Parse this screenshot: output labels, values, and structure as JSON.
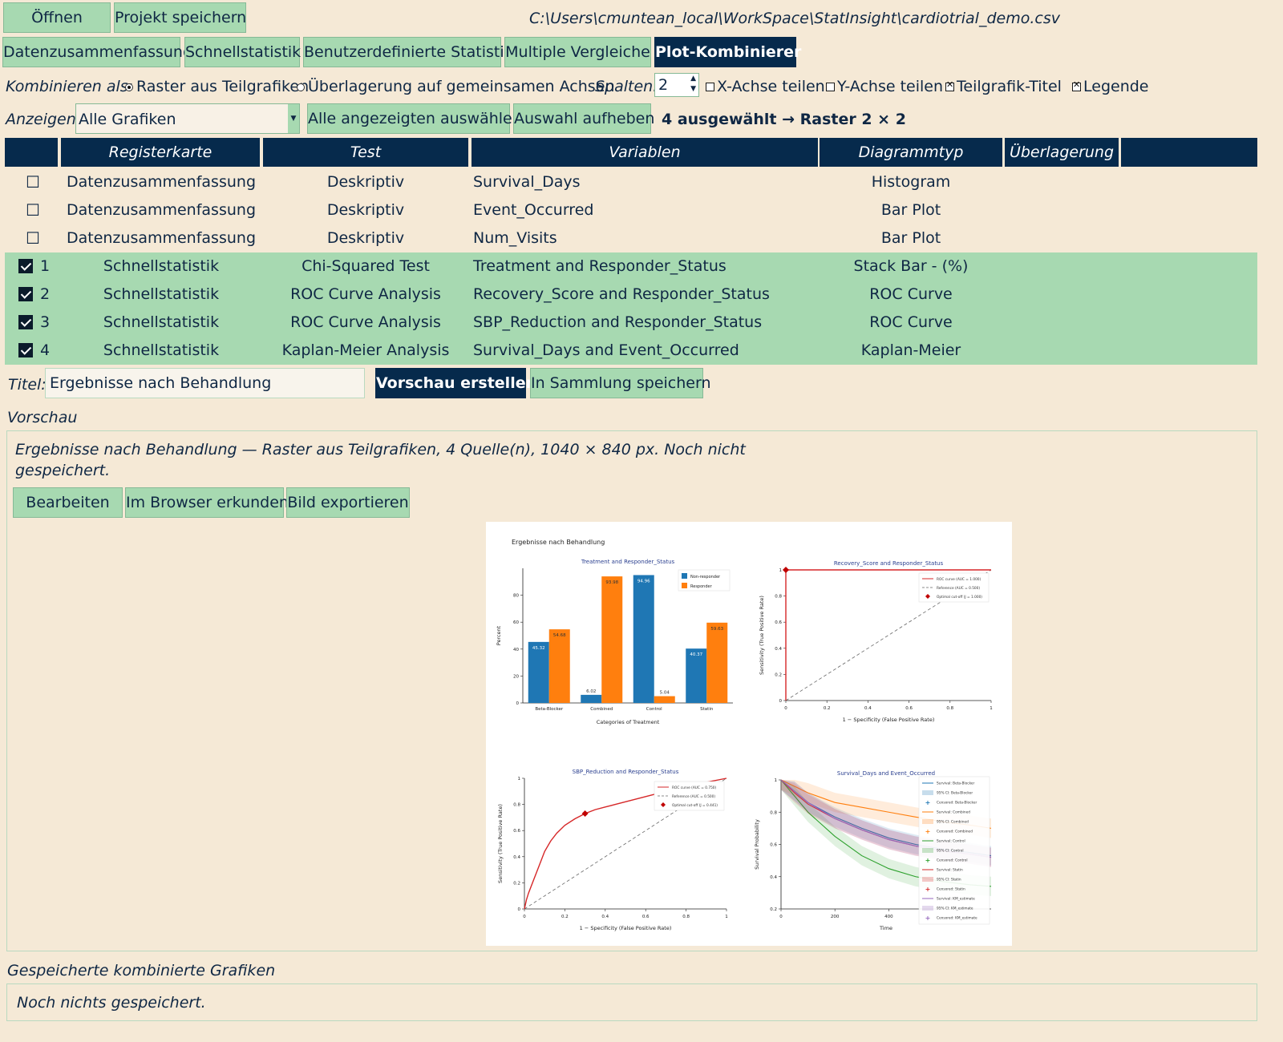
{
  "toolbar": {
    "open_label": "Öffnen",
    "save_project_label": "Projekt speichern",
    "file_path": "C:\\Users\\cmuntean_local\\WorkSpace\\StatInsight\\cardiotrial_demo.csv"
  },
  "tabs": [
    {
      "label": "Datenzusammenfassung",
      "active": false
    },
    {
      "label": "Schnellstatistik",
      "active": false
    },
    {
      "label": "Benutzerdefinierte Statistik",
      "active": false
    },
    {
      "label": "Multiple Vergleiche",
      "active": false
    },
    {
      "label": "Plot-Kombinierer",
      "active": true
    }
  ],
  "options": {
    "combine_label": "Kombinieren als:",
    "radio_grid": "Raster aus Teilgrafiken",
    "radio_overlay": "Überlagerung auf gemeinsamen Achsen",
    "columns_label": "Spalten:",
    "columns_value": "2",
    "share_x": "X-Achse teilen",
    "share_y": "Y-Achse teilen",
    "subplot_titles": "Teilgrafik-Titel",
    "legend": "Legende",
    "share_x_checked": false,
    "share_y_checked": false,
    "subplot_titles_checked": true,
    "legend_checked": true
  },
  "filter": {
    "show_label": "Anzeigen:",
    "show_value": "Alle Grafiken",
    "select_all_label": "Alle angezeigten auswählen",
    "clear_label": "Auswahl aufheben",
    "summary": "4 ausgewählt → Raster 2 × 2"
  },
  "table": {
    "headers": [
      "",
      "Registerkarte",
      "Test",
      "Variablen",
      "Diagrammtyp",
      "Überlagerung"
    ],
    "rows": [
      {
        "checked": false,
        "num": "",
        "tab": "Datenzusammenfassung",
        "test": "Deskriptiv",
        "vars": "Survival_Days",
        "type": "Histogram"
      },
      {
        "checked": false,
        "num": "",
        "tab": "Datenzusammenfassung",
        "test": "Deskriptiv",
        "vars": "Event_Occurred",
        "type": "Bar Plot"
      },
      {
        "checked": false,
        "num": "",
        "tab": "Datenzusammenfassung",
        "test": "Deskriptiv",
        "vars": "Num_Visits",
        "type": "Bar Plot"
      },
      {
        "checked": true,
        "num": "1",
        "tab": "Schnellstatistik",
        "test": "Chi-Squared Test",
        "vars": "Treatment and Responder_Status",
        "type": "Stack Bar - (%)"
      },
      {
        "checked": true,
        "num": "2",
        "tab": "Schnellstatistik",
        "test": "ROC Curve Analysis",
        "vars": "Recovery_Score and Responder_Status",
        "type": "ROC Curve"
      },
      {
        "checked": true,
        "num": "3",
        "tab": "Schnellstatistik",
        "test": "ROC Curve Analysis",
        "vars": "SBP_Reduction and Responder_Status",
        "type": "ROC Curve"
      },
      {
        "checked": true,
        "num": "4",
        "tab": "Schnellstatistik",
        "test": "Kaplan-Meier Analysis",
        "vars": "Survival_Days and Event_Occurred",
        "type": "Kaplan-Meier"
      }
    ]
  },
  "title_row": {
    "label": "Titel:",
    "value": "Ergebnisse nach Behandlung",
    "preview_btn": "Vorschau erstellen",
    "save_btn": "In Sammlung speichern"
  },
  "preview": {
    "section_label": "Vorschau",
    "info_line1": "Ergebnisse nach Behandlung — Raster aus Teilgrafiken, 4 Quelle(n), 1040 × 840 px. Noch nicht",
    "info_line2": "gespeichert.",
    "edit_btn": "Bearbeiten",
    "browser_btn": "Im Browser erkunden",
    "export_btn": "Bild exportieren"
  },
  "figure": {
    "title": "Ergebnisse nach Behandlung"
  },
  "saved": {
    "section_label": "Gespeicherte kombinierte Grafiken",
    "empty_text": "Noch nichts gespeichert."
  },
  "colors": {
    "accent_green": "#a7d9b1",
    "dark_navy": "#062a4c",
    "background": "#f5e9d6",
    "series_blue": "#1f77b4",
    "series_orange": "#ff7f0e",
    "series_green": "#2ca02c",
    "series_red": "#d62728",
    "series_purple": "#9467bd"
  },
  "chart_data": [
    {
      "type": "bar",
      "title": "Treatment and Responder_Status",
      "xlabel": "Categories of Treatment",
      "ylabel": "Percent",
      "categories": [
        "Beta-Blocker",
        "Combined",
        "Control",
        "Statin"
      ],
      "series": [
        {
          "name": "Non-responder",
          "values": [
            45.32,
            6.02,
            94.96,
            40.37
          ],
          "labels": [
            "45.32",
            "6.02",
            "94.96",
            "40.37"
          ]
        },
        {
          "name": "Responder",
          "values": [
            54.68,
            93.98,
            5.04,
            59.63
          ],
          "labels": [
            "54.68",
            "93.98",
            "5.04",
            "59.63"
          ]
        }
      ],
      "ylim": [
        0,
        100
      ],
      "yticks": [
        "0",
        "20",
        "40",
        "60",
        "80"
      ]
    },
    {
      "type": "line",
      "title": "Recovery_Score and Responder_Status",
      "xlabel": "1 − Specificity (False Positive Rate)",
      "ylabel": "Sensitivity (True Positive Rate)",
      "xlim": [
        0,
        1
      ],
      "ylim": [
        0,
        1
      ],
      "xticks": [
        "0",
        "0.2",
        "0.4",
        "0.6",
        "0.8",
        "1"
      ],
      "yticks": [
        "0",
        "0.2",
        "0.4",
        "0.6",
        "0.8",
        "1"
      ],
      "legend": [
        "ROC curve (AUC = 1.000)",
        "Reference (AUC = 0.500)",
        "Optimal cut-off (J = 1.000)"
      ],
      "series": [
        {
          "name": "ROC curve",
          "x": [
            0,
            0,
            1
          ],
          "y": [
            0,
            1,
            1
          ]
        },
        {
          "name": "Reference",
          "x": [
            0,
            1
          ],
          "y": [
            0,
            1
          ]
        }
      ],
      "optimal_point": {
        "x": 0,
        "y": 1
      }
    },
    {
      "type": "line",
      "title": "SBP_Reduction and Responder_Status",
      "xlabel": "1 − Specificity (False Positive Rate)",
      "ylabel": "Sensitivity (True Positive Rate)",
      "xlim": [
        0,
        1
      ],
      "ylim": [
        0,
        1
      ],
      "xticks": [
        "0",
        "0.2",
        "0.4",
        "0.6",
        "0.8",
        "1"
      ],
      "yticks": [
        "0",
        "0.2",
        "0.4",
        "0.6",
        "0.8",
        "1"
      ],
      "legend": [
        "ROC curve (AUC = 0.750)",
        "Reference (AUC = 0.500)",
        "Optimal cut-off (J = 0.441)"
      ],
      "series": [
        {
          "name": "ROC curve",
          "x": [
            0,
            0.01,
            0.02,
            0.04,
            0.06,
            0.08,
            0.1,
            0.13,
            0.16,
            0.2,
            0.25,
            0.3,
            0.35,
            0.4,
            0.45,
            0.5,
            0.55,
            0.6,
            0.7,
            0.8,
            0.9,
            1
          ],
          "y": [
            0,
            0.07,
            0.12,
            0.2,
            0.28,
            0.36,
            0.44,
            0.52,
            0.58,
            0.64,
            0.69,
            0.73,
            0.76,
            0.78,
            0.8,
            0.82,
            0.84,
            0.86,
            0.9,
            0.93,
            0.97,
            1
          ]
        },
        {
          "name": "Reference",
          "x": [
            0,
            1
          ],
          "y": [
            0,
            1
          ]
        }
      ],
      "optimal_point": {
        "x": 0.3,
        "y": 0.73
      }
    },
    {
      "type": "line",
      "title": "Survival_Days and Event_Occurred",
      "xlabel": "Time",
      "ylabel": "Survival Probability",
      "xlim": [
        0,
        780
      ],
      "ylim": [
        0.2,
        1
      ],
      "xticks": [
        "0",
        "200",
        "400"
      ],
      "yticks": [
        "0.2",
        "0.4",
        "0.6",
        "0.8",
        "1"
      ],
      "legend": [
        "Survival: Beta-Blocker",
        "95% CI: Beta-Blocker",
        "Censored: Beta-Blocker",
        "Survival: Combined",
        "95% CI: Combined",
        "Censored: Combined",
        "Survival: Control",
        "95% CI: Control",
        "Censored: Control",
        "Survival: Statin",
        "95% CI: Statin",
        "Censored: Statin",
        "Survival: KM_estimate",
        "95% CI: KM_estimate",
        "Censored: KM_estimate"
      ],
      "series": [
        {
          "name": "Beta-Blocker",
          "x": [
            0,
            50,
            100,
            200,
            300,
            400,
            500,
            600,
            700,
            780
          ],
          "y": [
            1,
            0.93,
            0.86,
            0.77,
            0.7,
            0.64,
            0.6,
            0.57,
            0.55,
            0.53
          ]
        },
        {
          "name": "Combined",
          "x": [
            0,
            50,
            100,
            200,
            300,
            400,
            500,
            600,
            700,
            780
          ],
          "y": [
            1,
            0.96,
            0.92,
            0.86,
            0.83,
            0.8,
            0.77,
            0.74,
            0.72,
            0.7
          ]
        },
        {
          "name": "Control",
          "x": [
            0,
            50,
            100,
            200,
            300,
            400,
            500,
            600,
            700,
            780
          ],
          "y": [
            1,
            0.9,
            0.8,
            0.65,
            0.53,
            0.45,
            0.4,
            0.37,
            0.35,
            0.34
          ]
        },
        {
          "name": "Statin",
          "x": [
            0,
            50,
            100,
            200,
            300,
            400,
            500,
            600,
            700,
            780
          ],
          "y": [
            1,
            0.92,
            0.85,
            0.76,
            0.69,
            0.63,
            0.59,
            0.56,
            0.54,
            0.52
          ]
        },
        {
          "name": "KM_estimate",
          "x": [
            0,
            50,
            100,
            200,
            300,
            400,
            500,
            600,
            700,
            780
          ],
          "y": [
            1,
            0.93,
            0.86,
            0.76,
            0.69,
            0.63,
            0.59,
            0.56,
            0.54,
            0.52
          ]
        }
      ]
    }
  ]
}
